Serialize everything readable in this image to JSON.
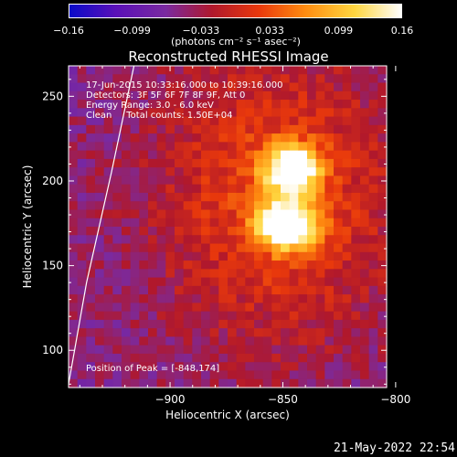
{
  "chart_data": {
    "type": "heatmap",
    "title": "Reconstructed RHESSI Image",
    "xlabel": "Heliocentric X (arcsec)",
    "ylabel": "Heliocentric Y (arcsec)",
    "xlim": [
      -945,
      -804
    ],
    "ylim": [
      78,
      268
    ],
    "x_ticks": [
      -900,
      -850,
      -800
    ],
    "x_tick_labels": [
      "−900",
      "−850",
      "−800"
    ],
    "y_ticks": [
      100,
      150,
      200,
      250
    ],
    "y_tick_labels": [
      "100",
      "150",
      "200",
      "250"
    ],
    "colorbar": {
      "min": -0.16,
      "max": 0.16,
      "ticks": [
        -0.16,
        -0.099,
        -0.033,
        0.033,
        0.099,
        0.16
      ],
      "tick_labels": [
        "−0.16",
        "−0.099",
        "−0.033",
        "0.033",
        "0.099",
        "0.16"
      ],
      "units": "(photons cm⁻² s⁻¹ asec⁻²)",
      "colormap": [
        "#0a0ac8",
        "#5a10b8",
        "#7a2aa0",
        "#b0182c",
        "#e8380c",
        "#ff8c10",
        "#ffd740",
        "#ffffff"
      ]
    },
    "sources": [
      {
        "x": -848,
        "y": 174,
        "peak": 0.16
      },
      {
        "x": -846,
        "y": 207,
        "peak": 0.14
      }
    ],
    "limb_curve": [
      [
        -945,
        80
      ],
      [
        -937,
        140
      ],
      [
        -926,
        205
      ],
      [
        -916,
        268
      ]
    ],
    "peak_position": [
      -848,
      174
    ]
  },
  "annotations": [
    "17-Jun-2015 10:33:16.000 to 10:39:16.000",
    "Detectors: 3F 5F 6F 7F 8F 9F, Att 0",
    "Energy Range: 3.0 - 6.0 keV",
    "Clean     Total counts: 1.50E+04"
  ],
  "peak_label": "Position of Peak = [-848,174]",
  "footer_date": "21-May-2022 22:54"
}
